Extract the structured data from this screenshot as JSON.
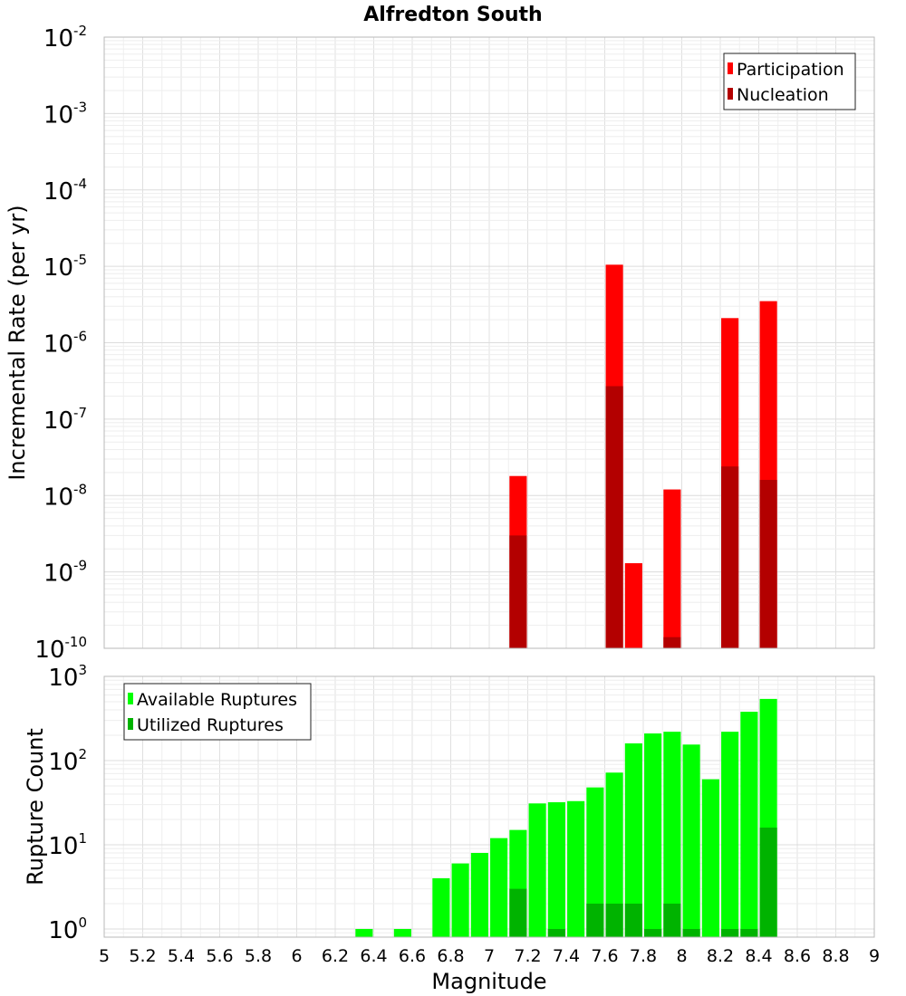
{
  "chart_data": [
    {
      "type": "bar",
      "title": "Alfredton South",
      "xlabel": "",
      "ylabel": "Incremental Rate (per yr)",
      "yscale": "log",
      "ylim": [
        1e-10,
        0.01
      ],
      "xlim": [
        5,
        9
      ],
      "y_ticks": [
        {
          "base": "10",
          "exp": "-10"
        },
        {
          "base": "10",
          "exp": "-9"
        },
        {
          "base": "10",
          "exp": "-8"
        },
        {
          "base": "10",
          "exp": "-7"
        },
        {
          "base": "10",
          "exp": "-6"
        },
        {
          "base": "10",
          "exp": "-5"
        },
        {
          "base": "10",
          "exp": "-4"
        },
        {
          "base": "10",
          "exp": "-3"
        },
        {
          "base": "10",
          "exp": "-2"
        }
      ],
      "grid": true,
      "legend_position": "top-right",
      "bar_width": 0.09,
      "series": [
        {
          "name": "Participation",
          "color": "#ff0000",
          "points": [
            {
              "x": 7.15,
              "y": 1.8e-08
            },
            {
              "x": 7.65,
              "y": 1.05e-05
            },
            {
              "x": 7.75,
              "y": 1.3e-09
            },
            {
              "x": 7.95,
              "y": 1.2e-08
            },
            {
              "x": 8.25,
              "y": 2.1e-06
            },
            {
              "x": 8.45,
              "y": 3.5e-06
            }
          ]
        },
        {
          "name": "Nucleation",
          "color": "#b30000",
          "points": [
            {
              "x": 7.15,
              "y": 3e-09
            },
            {
              "x": 7.65,
              "y": 2.7e-07
            },
            {
              "x": 7.95,
              "y": 1.4e-10
            },
            {
              "x": 8.25,
              "y": 2.4e-08
            },
            {
              "x": 8.45,
              "y": 1.6e-08
            }
          ]
        }
      ]
    },
    {
      "type": "bar",
      "xlabel": "Magnitude",
      "ylabel": "Rupture Count",
      "yscale": "log",
      "ylim": [
        0.8,
        1000
      ],
      "xlim": [
        5,
        9
      ],
      "x_ticks": [
        "5",
        "5.2",
        "5.4",
        "5.6",
        "5.8",
        "6",
        "6.2",
        "6.4",
        "6.6",
        "6.8",
        "7",
        "7.2",
        "7.4",
        "7.6",
        "7.8",
        "8",
        "8.2",
        "8.4",
        "8.6",
        "8.8",
        "9"
      ],
      "y_ticks": [
        {
          "base": "10",
          "exp": "0"
        },
        {
          "base": "10",
          "exp": "1"
        },
        {
          "base": "10",
          "exp": "2"
        },
        {
          "base": "10",
          "exp": "3"
        }
      ],
      "grid": true,
      "legend_position": "top-left",
      "bar_width": 0.09,
      "series": [
        {
          "name": "Available Ruptures",
          "color": "#00ff00",
          "points": [
            {
              "x": 6.35,
              "y": 1
            },
            {
              "x": 6.55,
              "y": 1
            },
            {
              "x": 6.75,
              "y": 4
            },
            {
              "x": 6.85,
              "y": 6
            },
            {
              "x": 6.95,
              "y": 8
            },
            {
              "x": 7.05,
              "y": 12
            },
            {
              "x": 7.15,
              "y": 15
            },
            {
              "x": 7.25,
              "y": 31
            },
            {
              "x": 7.35,
              "y": 32
            },
            {
              "x": 7.45,
              "y": 33
            },
            {
              "x": 7.55,
              "y": 48
            },
            {
              "x": 7.65,
              "y": 72
            },
            {
              "x": 7.75,
              "y": 160
            },
            {
              "x": 7.85,
              "y": 210
            },
            {
              "x": 7.95,
              "y": 220
            },
            {
              "x": 8.05,
              "y": 155
            },
            {
              "x": 8.15,
              "y": 60
            },
            {
              "x": 8.25,
              "y": 220
            },
            {
              "x": 8.35,
              "y": 380
            },
            {
              "x": 8.45,
              "y": 540
            }
          ]
        },
        {
          "name": "Utilized Ruptures",
          "color": "#00b300",
          "points": [
            {
              "x": 7.15,
              "y": 3
            },
            {
              "x": 7.35,
              "y": 1
            },
            {
              "x": 7.55,
              "y": 2
            },
            {
              "x": 7.65,
              "y": 2
            },
            {
              "x": 7.75,
              "y": 2
            },
            {
              "x": 7.85,
              "y": 1
            },
            {
              "x": 7.95,
              "y": 2
            },
            {
              "x": 8.05,
              "y": 1
            },
            {
              "x": 8.25,
              "y": 1
            },
            {
              "x": 8.35,
              "y": 1
            },
            {
              "x": 8.45,
              "y": 16
            }
          ]
        }
      ]
    }
  ]
}
